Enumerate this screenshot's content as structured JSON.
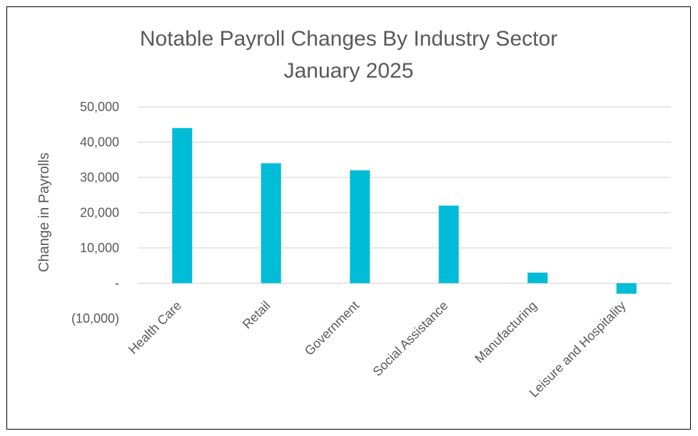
{
  "chart_data": {
    "type": "bar",
    "title": "Notable Payroll Changes By Industry Sector",
    "subtitle": "January 2025",
    "xlabel": "",
    "ylabel": "Change in Payrolls",
    "categories": [
      "Health Care",
      "Retail",
      "Government",
      "Social Assistance",
      "Manufacturing",
      "Leisure and Hospitality"
    ],
    "values": [
      44000,
      34000,
      32000,
      22000,
      3000,
      -3000
    ],
    "ylim": [
      -10000,
      50000
    ],
    "yticks": [
      50000,
      40000,
      30000,
      20000,
      10000,
      0,
      -10000
    ],
    "ytick_labels": [
      "50,000",
      "40,000",
      "30,000",
      "20,000",
      "10,000",
      "-",
      "(10,000)"
    ],
    "grid": true,
    "legend": "none",
    "colors": {
      "bar": "#00BCD6",
      "grid": "#D9D9D9",
      "text": "#595959",
      "border": "#000000"
    }
  }
}
